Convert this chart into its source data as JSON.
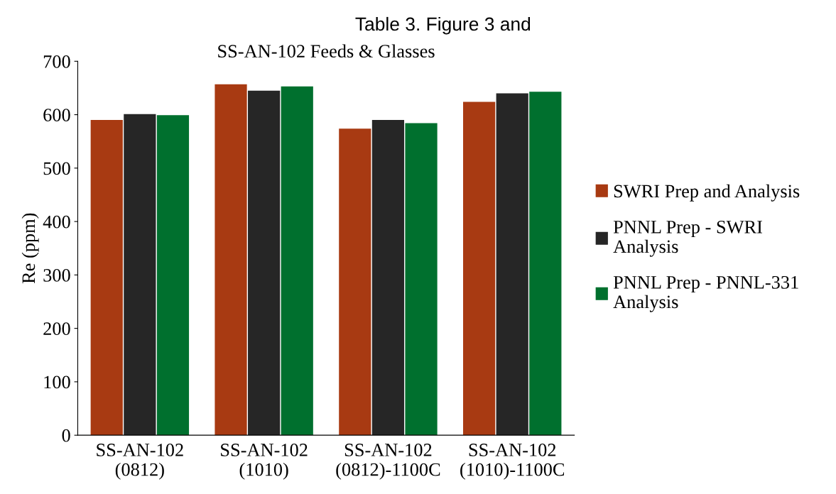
{
  "chart_data": {
    "type": "bar",
    "title": "Table 3. Figure 3 and",
    "subtitle": "SS-AN-102 Feeds & Glasses",
    "ylabel": "Re (ppm)",
    "categories": [
      "SS-AN-102\n(0812)",
      "SS-AN-102\n(1010)",
      "SS-AN-102\n(0812)-1100C",
      "SS-AN-102\n(1010)-1100C"
    ],
    "series": [
      {
        "name": "SWRI Prep and Analysis",
        "color": "#a83a12",
        "values": [
          590,
          657,
          574,
          624
        ]
      },
      {
        "name": "PNNL Prep - SWRI\nAnalysis",
        "color": "#262626",
        "values": [
          601,
          645,
          590,
          640
        ]
      },
      {
        "name": "PNNL Prep - PNNL-331\nAnalysis",
        "color": "#00702e",
        "values": [
          599,
          653,
          584,
          643
        ]
      }
    ],
    "ylim": [
      0,
      700
    ],
    "yticks": [
      0,
      100,
      200,
      300,
      400,
      500,
      600,
      700
    ],
    "grid": false,
    "legend": "right"
  }
}
